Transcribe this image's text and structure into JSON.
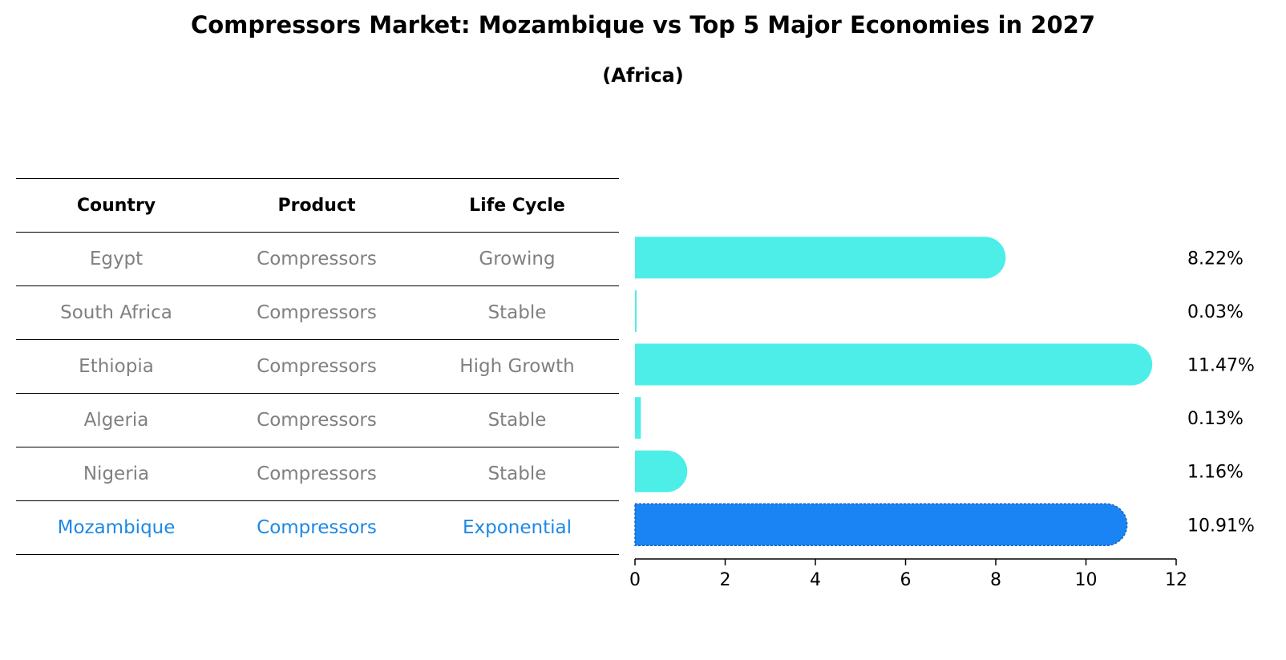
{
  "title": "Compressors Market: Mozambique vs Top 5 Major Economies in 2027",
  "subtitle": "(Africa)",
  "table": {
    "headers": [
      "Country",
      "Product",
      "Life Cycle"
    ],
    "rows": [
      {
        "country": "Egypt",
        "product": "Compressors",
        "life_cycle": "Growing"
      },
      {
        "country": "South Africa",
        "product": "Compressors",
        "life_cycle": "Stable"
      },
      {
        "country": "Ethiopia",
        "product": "Compressors",
        "life_cycle": "High Growth"
      },
      {
        "country": "Algeria",
        "product": "Compressors",
        "life_cycle": "Stable"
      },
      {
        "country": "Nigeria",
        "product": "Compressors",
        "life_cycle": "Stable"
      },
      {
        "country": "Mozambique",
        "product": "Compressors",
        "life_cycle": "Exponential"
      }
    ]
  },
  "chart_data": {
    "type": "bar",
    "orientation": "horizontal",
    "categories": [
      "Egypt",
      "South Africa",
      "Ethiopia",
      "Algeria",
      "Nigeria",
      "Mozambique"
    ],
    "values": [
      8.22,
      0.03,
      11.47,
      0.13,
      1.16,
      10.91
    ],
    "data_labels": [
      "8.22%",
      "0.03%",
      "11.47%",
      "0.13%",
      "1.16%",
      "10.91%"
    ],
    "highlight_index": 5,
    "xlim": [
      0,
      12
    ],
    "xticks": [
      0,
      2,
      4,
      6,
      8,
      10,
      12
    ],
    "colors": {
      "default": "#4deee8",
      "highlight": "#1a84f5"
    }
  }
}
